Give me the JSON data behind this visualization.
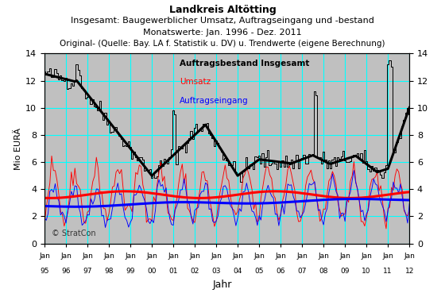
{
  "title_lines": [
    "Landkreis Altötting",
    "Insgesamt: Baugewerblicher Umsatz, Auftragseingang und -bestand",
    "Monatswerte: Jan. 1996 - Dez. 2011",
    "Original- (Quelle: Bay. LA f. Statistik u. DV) u. Trendwerte (eigene Berechnung)"
  ],
  "xlabel": "Jahr",
  "ylabel": "Mio EURÄ",
  "ylim": [
    0,
    14
  ],
  "yticks": [
    0,
    2,
    4,
    6,
    8,
    10,
    12,
    14
  ],
  "legend_labels": [
    "Auftragsbestand Insgesamt",
    "Umsatz",
    "Auftragseingang"
  ],
  "legend_colors": [
    "black",
    "red",
    "blue"
  ],
  "watermark": "© StratCon",
  "bg_color": "#c0c0c0",
  "grid_color": "cyan",
  "start_year": 1995,
  "end_year": 2012
}
